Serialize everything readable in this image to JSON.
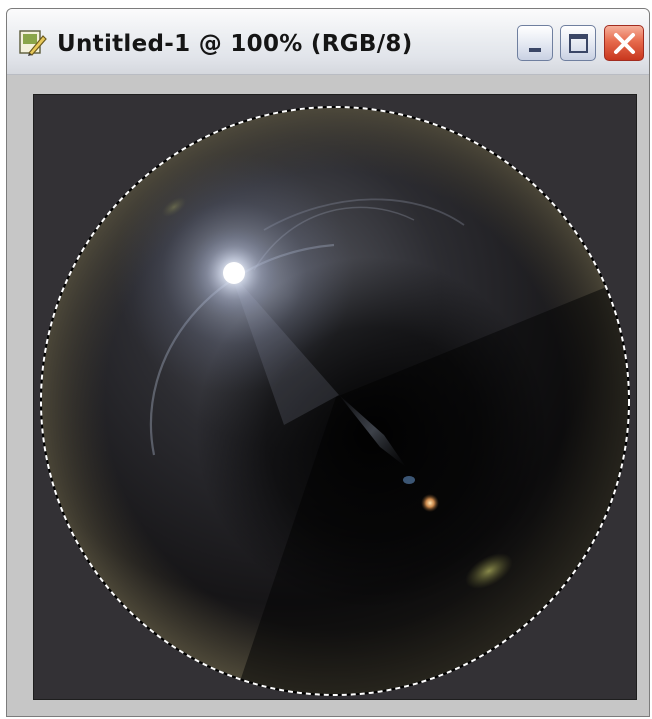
{
  "window": {
    "title": "Untitled-1 @ 100% (RGB/8)",
    "icons": {
      "document": "photoshop-document-icon",
      "minimize": "minimize-icon",
      "maximize": "maximize-icon",
      "close": "close-icon"
    }
  },
  "canvas": {
    "background_color": "#333135",
    "selection": "circular-marquee-selection",
    "content": "spherized-lens-flare"
  }
}
